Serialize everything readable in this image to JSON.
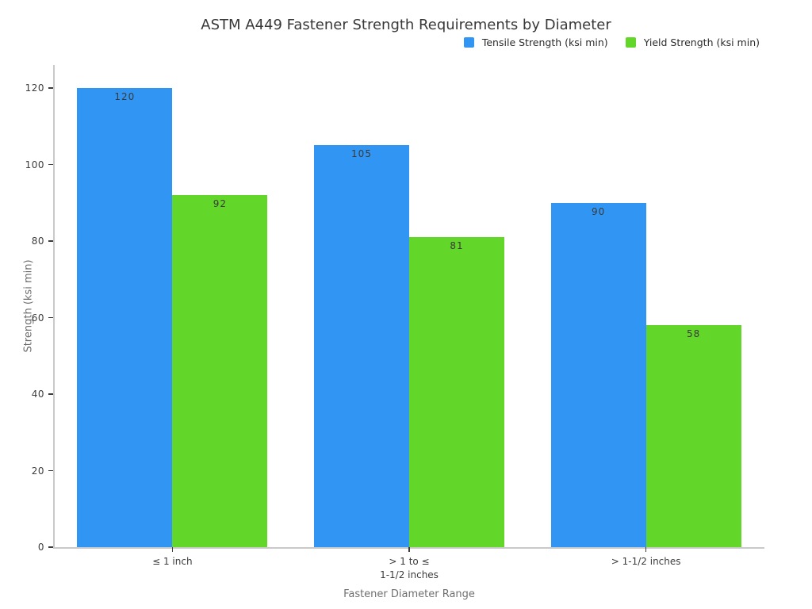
{
  "chart_data": {
    "type": "bar",
    "title": "ASTM A449 Fastener Strength Requirements by Diameter",
    "xlabel": "Fastener Diameter Range",
    "ylabel": "Strength (ksi min)",
    "categories": [
      "≤ 1 inch",
      "> 1 to ≤\n1-1/2 inches",
      "> 1-1/2 inches"
    ],
    "series": [
      {
        "name": "Tensile Strength (ksi min)",
        "color": "#3196f3",
        "values": [
          120,
          105,
          90
        ]
      },
      {
        "name": "Yield Strength (ksi min)",
        "color": "#63d62a",
        "values": [
          92,
          81,
          58
        ]
      }
    ],
    "ylim": [
      0,
      120
    ],
    "yticks": [
      0,
      20,
      40,
      60,
      80,
      100,
      120
    ],
    "grid": false,
    "legend_position": "top-right",
    "bar_value_labels": true
  },
  "colors": {
    "tensile_blue": "#3196f3",
    "yield_green": "#63d62a",
    "axis_line": "#c9c9c9",
    "tick_mark": "#3c3c3c",
    "title_text": "#383838",
    "axis_title_text": "#6f6f6f"
  }
}
